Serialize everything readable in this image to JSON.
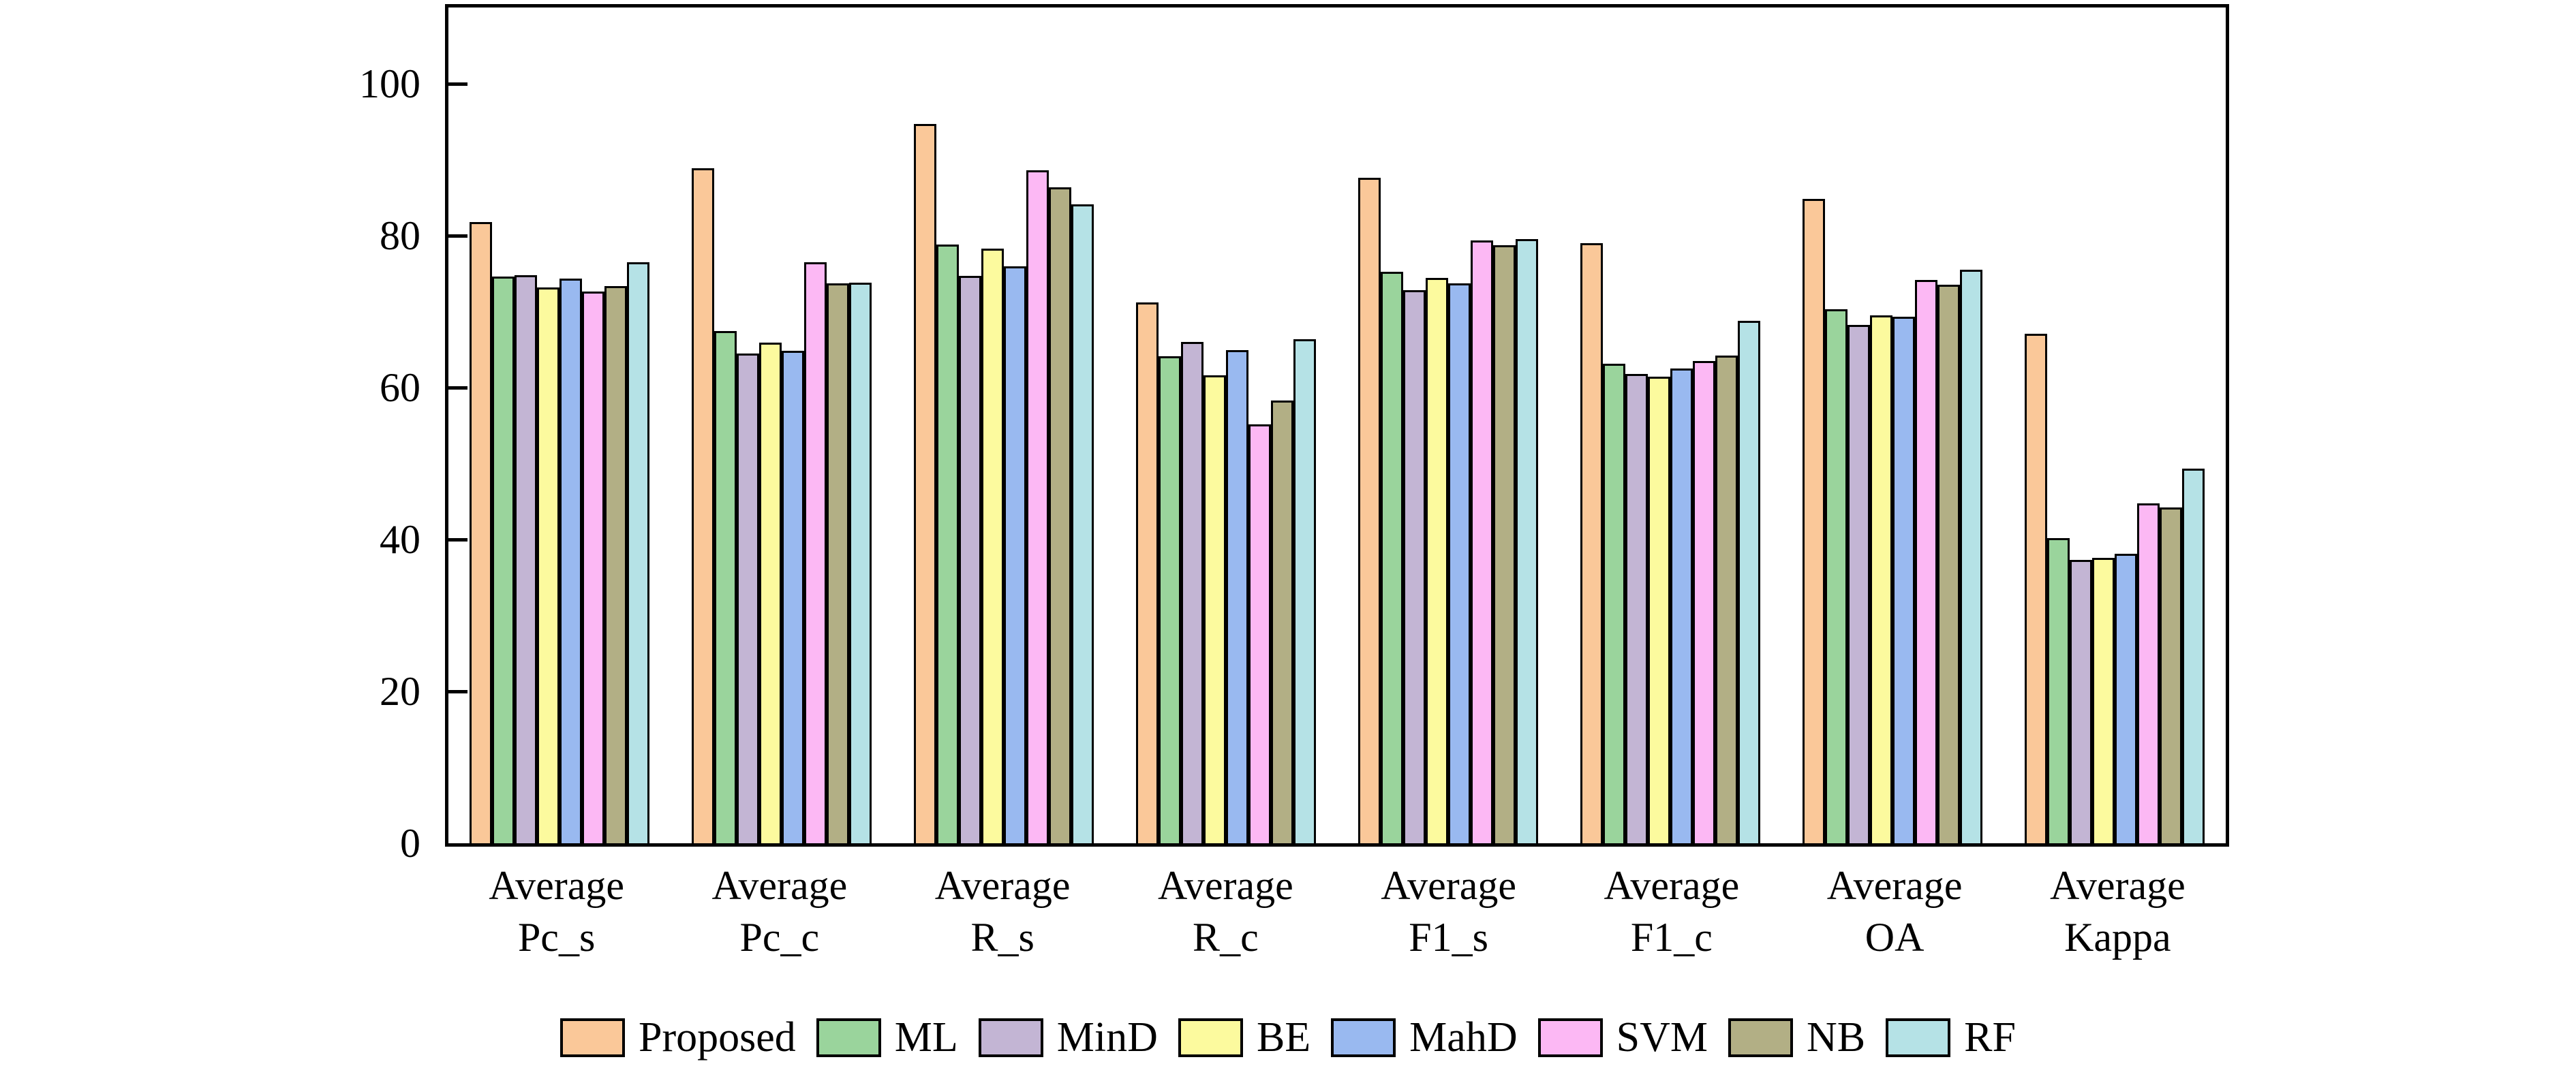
{
  "chart_data": {
    "type": "bar",
    "categories": [
      [
        "Average",
        "Pc_s"
      ],
      [
        "Average",
        "Pc_c"
      ],
      [
        "Average",
        "R_s"
      ],
      [
        "Average",
        "R_c"
      ],
      [
        "Average",
        "F1_s"
      ],
      [
        "Average",
        "F1_c"
      ],
      [
        "Average",
        "OA"
      ],
      [
        "Average",
        "Kappa"
      ]
    ],
    "series": [
      {
        "name": "Proposed",
        "color": "#FAC899",
        "values": [
          81.8,
          88.8,
          94.7,
          71.2,
          87.6,
          79.0,
          84.8,
          67.1
        ]
      },
      {
        "name": "ML",
        "color": "#9AD49C",
        "values": [
          74.6,
          67.4,
          78.8,
          64.1,
          75.2,
          63.1,
          70.3,
          40.2
        ]
      },
      {
        "name": "MinD",
        "color": "#C3B5D4",
        "values": [
          74.8,
          64.5,
          74.7,
          66.0,
          72.8,
          61.8,
          68.2,
          37.3
        ]
      },
      {
        "name": "BE",
        "color": "#FCFA9E",
        "values": [
          73.2,
          65.9,
          78.3,
          61.6,
          74.4,
          61.4,
          69.5,
          37.6
        ]
      },
      {
        "name": "MahD",
        "color": "#99B9F0",
        "values": [
          74.3,
          64.8,
          75.9,
          64.9,
          73.7,
          62.5,
          69.3,
          38.1
        ]
      },
      {
        "name": "SVM",
        "color": "#FCB8F4",
        "values": [
          72.6,
          76.5,
          88.6,
          55.1,
          79.3,
          63.5,
          74.1,
          44.7
        ]
      },
      {
        "name": "NB",
        "color": "#B2AF85",
        "values": [
          73.3,
          73.7,
          86.3,
          58.3,
          78.7,
          64.2,
          73.5,
          44.2
        ]
      },
      {
        "name": "RF",
        "color": "#B5E2E6",
        "values": [
          76.5,
          73.8,
          84.1,
          66.3,
          79.5,
          68.8,
          75.5,
          49.3
        ]
      }
    ],
    "ylim": [
      0,
      110
    ],
    "yticks": [
      0,
      20,
      40,
      60,
      80,
      100
    ],
    "grid": false,
    "legend_position": "bottom",
    "bar_edge_color": "#000000",
    "axis_color": "#000000",
    "background_color": "#FFFFFF"
  }
}
